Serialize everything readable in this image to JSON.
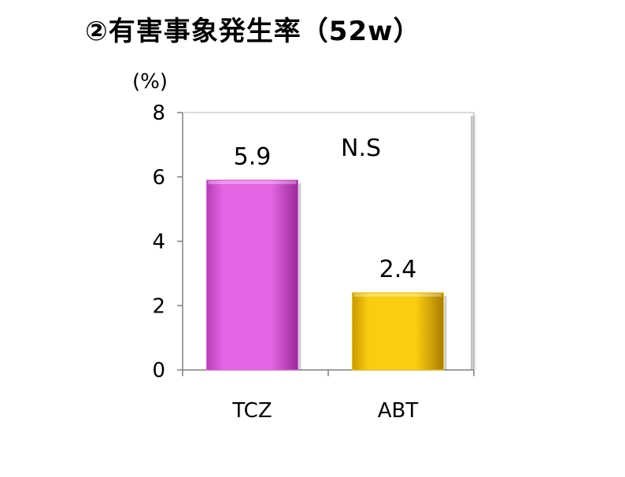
{
  "chart_data": {
    "type": "bar",
    "title": "②有害事象発生率（52w）",
    "ylabel": "(%)",
    "xlabel": "",
    "ylim": [
      0,
      8
    ],
    "yticks": [
      "0",
      "2",
      "4",
      "6",
      "8"
    ],
    "categories": [
      "TCZ",
      "ABT"
    ],
    "values": [
      5.9,
      2.4
    ],
    "value_labels": [
      "5.9",
      "2.4"
    ],
    "colors": [
      "#e060e0",
      "#f5c400"
    ],
    "annotation": "N.S",
    "grid": false,
    "legend": "none"
  }
}
